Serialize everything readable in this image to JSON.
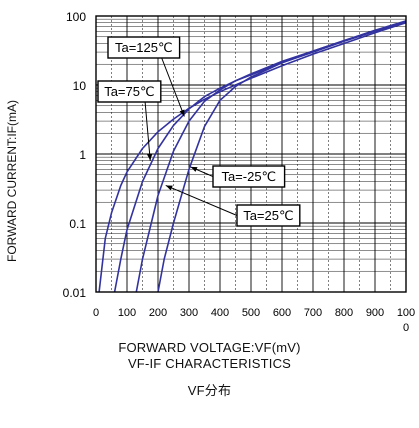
{
  "chart_data": {
    "type": "line",
    "title": "VF-IF CHARACTERISTICS",
    "caption": "VF分布",
    "xlabel": "FORWARD VOLTAGE:VF(mV)",
    "ylabel": "FORWARD CURRENT:IF(mA)",
    "xlim": [
      0,
      1000
    ],
    "ylim": [
      0.01,
      100
    ],
    "yscale": "log",
    "x_ticks": [
      "0",
      "100",
      "200",
      "300",
      "400",
      "500",
      "600",
      "700",
      "800",
      "900",
      "100"
    ],
    "x_tick_extra": "0",
    "y_ticks": [
      "100",
      "10",
      "1",
      "0.1",
      "0.01"
    ],
    "grid": true,
    "colors": {
      "series": "#3333a0",
      "grid": "#000000",
      "frame": "#000000"
    },
    "series": [
      {
        "name": "Ta=125℃",
        "x": [
          10,
          30,
          50,
          80,
          100,
          150,
          200,
          250,
          300,
          350,
          400,
          450,
          500,
          600,
          700,
          800,
          900,
          1000
        ],
        "y": [
          0.01,
          0.06,
          0.14,
          0.35,
          0.55,
          1.2,
          2.1,
          3.2,
          4.6,
          6.2,
          8.0,
          10.0,
          12.5,
          19,
          28,
          40,
          57,
          80
        ]
      },
      {
        "name": "Ta=75℃",
        "x": [
          60,
          80,
          100,
          150,
          200,
          250,
          300,
          350,
          400,
          450,
          500,
          600,
          700,
          800,
          900,
          1000
        ],
        "y": [
          0.01,
          0.03,
          0.08,
          0.4,
          1.2,
          2.6,
          4.5,
          6.8,
          9.0,
          11.5,
          14,
          21,
          30,
          43,
          60,
          82
        ]
      },
      {
        "name": "Ta=25℃",
        "x": [
          130,
          150,
          200,
          250,
          300,
          350,
          400,
          450,
          500,
          600,
          700,
          800,
          900,
          1000
        ],
        "y": [
          0.01,
          0.03,
          0.25,
          1.1,
          3.0,
          5.8,
          8.5,
          11.5,
          14.5,
          22,
          31,
          44,
          61,
          83
        ]
      },
      {
        "name": "Ta=-25℃",
        "x": [
          200,
          220,
          250,
          300,
          350,
          400,
          450,
          500,
          600,
          700,
          800,
          900,
          1000
        ],
        "y": [
          0.01,
          0.03,
          0.1,
          0.6,
          2.5,
          6.0,
          9.5,
          13,
          21,
          31,
          44,
          62,
          85
        ]
      }
    ],
    "annotations": [
      {
        "text": "Ta=125℃",
        "series": 0,
        "target_x": 285,
        "target_y": 3.5
      },
      {
        "text": "Ta=75℃",
        "series": 1,
        "target_x": 175,
        "target_y": 0.8
      },
      {
        "text": "Ta=-25℃",
        "series": 3,
        "target_x": 305,
        "target_y": 0.65
      },
      {
        "text": "Ta=25℃",
        "series": 2,
        "target_x": 225,
        "target_y": 0.35
      }
    ]
  }
}
